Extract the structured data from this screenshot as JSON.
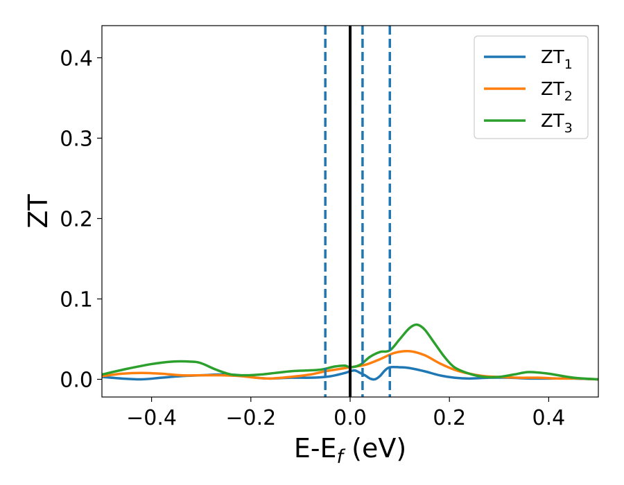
{
  "chart_data": {
    "type": "line",
    "title": "",
    "xlabel": "E-E",
    "xlabel_sub": "f",
    "xlabel_unit": " (eV)",
    "ylabel": "ZT",
    "xlim": [
      -0.5,
      0.5
    ],
    "ylim": [
      -0.022,
      0.44
    ],
    "xticks": [
      -0.4,
      -0.2,
      0.0,
      0.2,
      0.4
    ],
    "xtick_labels": [
      "−0.4",
      "−0.2",
      "0.0",
      "0.2",
      "0.4"
    ],
    "yticks": [
      0.0,
      0.1,
      0.2,
      0.3,
      0.4
    ],
    "ytick_labels": [
      "0.0",
      "0.1",
      "0.2",
      "0.3",
      "0.4"
    ],
    "grid": false,
    "legend_position": "top-right",
    "series": [
      {
        "name": "ZT",
        "name_sub": "1",
        "color": "#1f77b4",
        "x": [
          -0.5,
          -0.46,
          -0.42,
          -0.38,
          -0.34,
          -0.3,
          -0.26,
          -0.22,
          -0.19,
          -0.16,
          -0.12,
          -0.08,
          -0.05,
          -0.03,
          -0.01,
          0.0,
          0.01,
          0.02,
          0.03,
          0.04,
          0.05,
          0.06,
          0.07,
          0.08,
          0.1,
          0.12,
          0.15,
          0.18,
          0.21,
          0.24,
          0.28,
          0.32,
          0.36,
          0.4,
          0.45,
          0.5
        ],
        "y": [
          0.003,
          0.001,
          0.0,
          0.002,
          0.004,
          0.005,
          0.006,
          0.005,
          0.002,
          0.001,
          0.002,
          0.002,
          0.003,
          0.005,
          0.008,
          0.01,
          0.011,
          0.008,
          0.005,
          0.001,
          0.0,
          0.004,
          0.011,
          0.015,
          0.015,
          0.014,
          0.01,
          0.005,
          0.002,
          0.001,
          0.002,
          0.002,
          0.001,
          0.001,
          0.001,
          0.0
        ]
      },
      {
        "name": "ZT",
        "name_sub": "2",
        "color": "#ff7f0e",
        "x": [
          -0.5,
          -0.46,
          -0.42,
          -0.38,
          -0.34,
          -0.3,
          -0.26,
          -0.22,
          -0.19,
          -0.16,
          -0.12,
          -0.08,
          -0.05,
          -0.02,
          0.0,
          0.03,
          0.06,
          0.09,
          0.12,
          0.15,
          0.18,
          0.21,
          0.24,
          0.27,
          0.3,
          0.34,
          0.38,
          0.42,
          0.46,
          0.5
        ],
        "y": [
          0.004,
          0.007,
          0.008,
          0.007,
          0.005,
          0.005,
          0.005,
          0.004,
          0.002,
          0.001,
          0.003,
          0.006,
          0.01,
          0.013,
          0.015,
          0.018,
          0.025,
          0.033,
          0.035,
          0.03,
          0.02,
          0.012,
          0.007,
          0.004,
          0.003,
          0.002,
          0.002,
          0.001,
          0.001,
          0.0
        ]
      },
      {
        "name": "ZT",
        "name_sub": "3",
        "color": "#2ca02c",
        "x": [
          -0.5,
          -0.45,
          -0.4,
          -0.36,
          -0.32,
          -0.3,
          -0.27,
          -0.24,
          -0.21,
          -0.18,
          -0.15,
          -0.12,
          -0.09,
          -0.06,
          -0.03,
          -0.01,
          0.0,
          0.02,
          0.04,
          0.06,
          0.08,
          0.1,
          0.12,
          0.135,
          0.15,
          0.17,
          0.19,
          0.21,
          0.24,
          0.27,
          0.3,
          0.33,
          0.36,
          0.4,
          0.45,
          0.5
        ],
        "y": [
          0.006,
          0.013,
          0.019,
          0.022,
          0.022,
          0.02,
          0.012,
          0.006,
          0.005,
          0.006,
          0.008,
          0.01,
          0.011,
          0.012,
          0.016,
          0.017,
          0.015,
          0.018,
          0.028,
          0.034,
          0.036,
          0.05,
          0.064,
          0.068,
          0.062,
          0.045,
          0.028,
          0.015,
          0.007,
          0.003,
          0.003,
          0.006,
          0.009,
          0.007,
          0.002,
          0.0
        ]
      }
    ],
    "vlines": [
      {
        "x": 0.0,
        "style": "solid",
        "color": "#000000"
      },
      {
        "x": -0.05,
        "style": "dashed",
        "color": "#1f77b4"
      },
      {
        "x": 0.025,
        "style": "dashed",
        "color": "#1f77b4"
      },
      {
        "x": 0.08,
        "style": "dashed",
        "color": "#1f77b4"
      }
    ]
  }
}
